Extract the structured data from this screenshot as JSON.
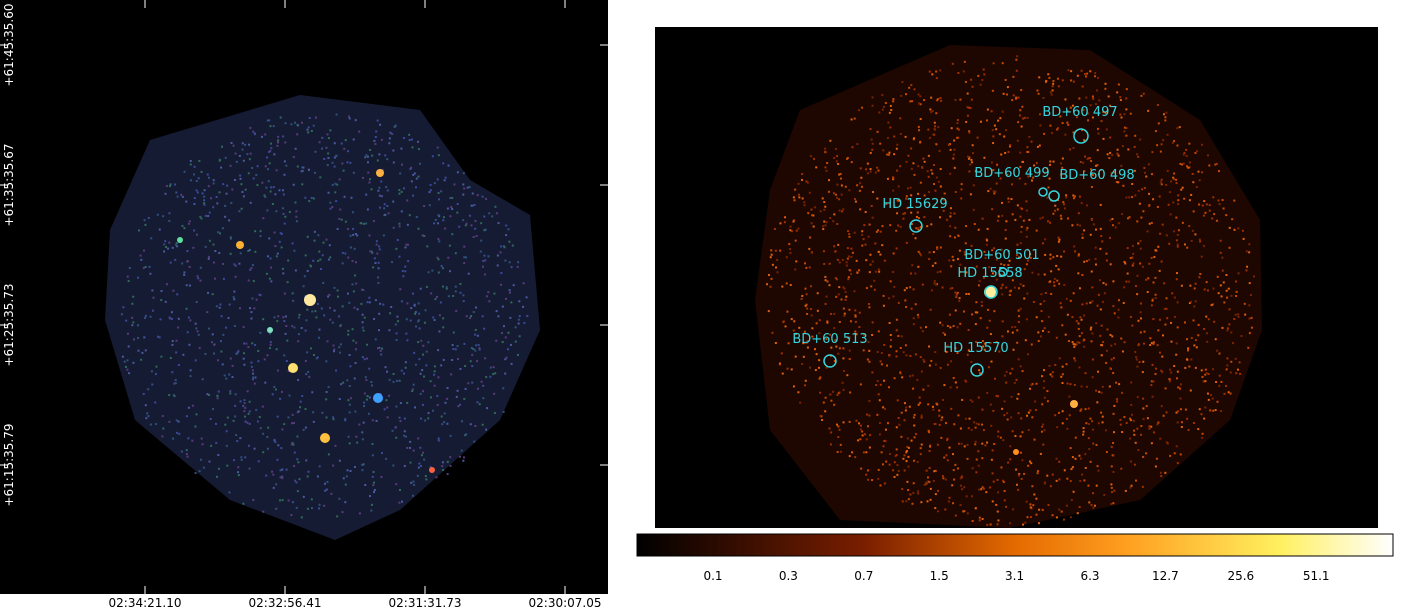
{
  "left_panel": {
    "x_labels": [
      "02:34:21.10",
      "02:32:56.41",
      "02:31:31.73",
      "02:30:07.05"
    ],
    "y_labels": [
      "+61:45:35.60",
      "+61:35:35.67",
      "+61:25:35.73",
      "+61:15:35.79"
    ]
  },
  "right_panel": {
    "sources": [
      "BD+60 497",
      "BD+60 499",
      "BD+60 498",
      "HD 15629",
      "BD+60 501",
      "HD 15558",
      "BD+60 513",
      "HD 15570"
    ]
  },
  "colorbar": {
    "labels": [
      "0.1",
      "0.3",
      "0.7",
      "1.5",
      "3.1",
      "6.3",
      "12.7",
      "25.6",
      "51.1"
    ]
  }
}
